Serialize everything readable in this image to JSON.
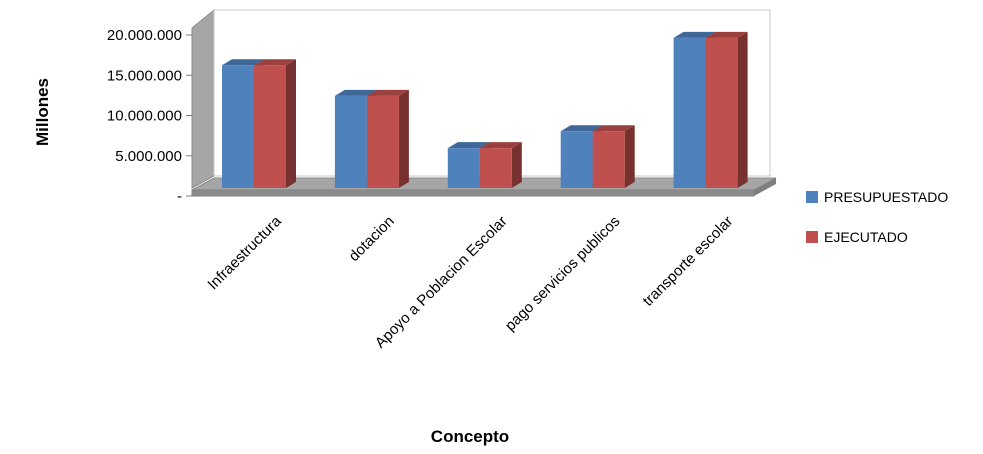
{
  "chart_data": {
    "type": "bar",
    "style": "3d-clustered-column",
    "xlabel": "Concepto",
    "ylabel": "Millones",
    "categories": [
      "Infraestructura",
      "dotacion",
      "Apoyo a Poblacion Escolar",
      "pago servicios publicos",
      "transporte escolar"
    ],
    "series": [
      {
        "name": "PRESUPUESTADO",
        "color": "#4F81BD",
        "values": [
          15500000,
          11700000,
          5200000,
          7300000,
          18900000
        ]
      },
      {
        "name": "EJECUTADO",
        "color": "#C0504D",
        "values": [
          15500000,
          11700000,
          5200000,
          7300000,
          18900000
        ]
      }
    ],
    "yticks": [
      "-",
      "5.000.000",
      "10.000.000",
      "15.000.000",
      "20.000.000"
    ],
    "ylim": [
      0,
      20000000
    ],
    "legend_position": "right",
    "grid": false
  }
}
